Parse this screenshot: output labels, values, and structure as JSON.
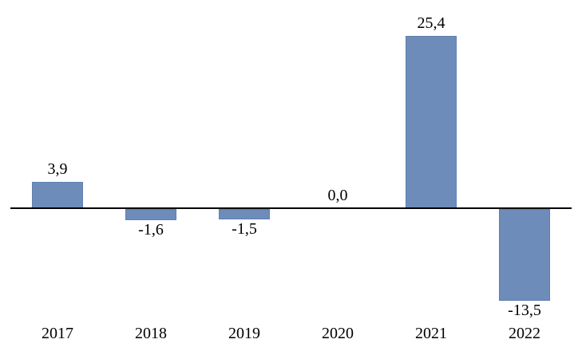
{
  "chart_data": {
    "type": "bar",
    "title": "",
    "xlabel": "",
    "ylabel": "",
    "categories": [
      "2017",
      "2018",
      "2019",
      "2020",
      "2021",
      "2022"
    ],
    "values": [
      3.9,
      -1.6,
      -1.5,
      0.0,
      25.4,
      -13.5
    ],
    "value_labels": [
      "3,9",
      "-1,6",
      "-1,5",
      "0,0",
      "25,4",
      "-13,5"
    ],
    "decimal_separator": ",",
    "legend": "none",
    "gridlines": false,
    "y_axis_visible": false,
    "zero_baseline_visible": true,
    "colors": {
      "bar_fill": "#6e8cba",
      "bar_border": "#5f7fb0",
      "axis_line": "#000000",
      "label_text": "#000000",
      "background": "#ffffff"
    }
  }
}
